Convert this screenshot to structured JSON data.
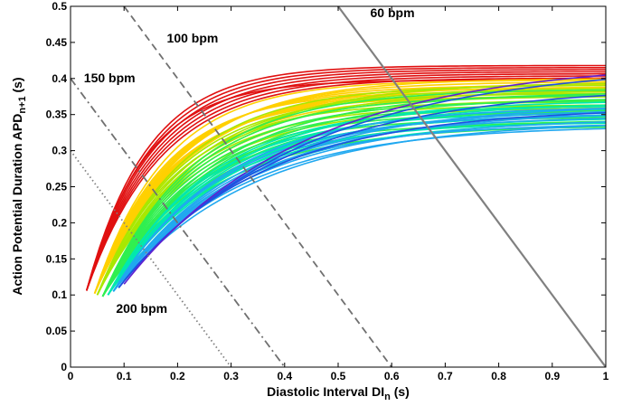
{
  "chart_data": {
    "type": "line",
    "xlabel": {
      "main": "Diastolic Interval DI",
      "sub": "n",
      "unit": " (s)"
    },
    "ylabel": {
      "main": "Action Potential Duration APD",
      "sub": "n+1",
      "unit": " (s)"
    },
    "xlim": [
      0,
      1
    ],
    "ylim": [
      0,
      0.5
    ],
    "xticks": [
      0,
      0.1,
      0.2,
      0.3,
      0.4,
      0.5,
      0.6,
      0.7,
      0.8,
      0.9,
      1
    ],
    "xtick_labels": [
      "0",
      "0.1",
      "0.2",
      "0.3",
      "0.4",
      "0.5",
      "0.6",
      "0.7",
      "0.8",
      "0.9",
      "1"
    ],
    "yticks": [
      0,
      0.05,
      0.1,
      0.15,
      0.2,
      0.25,
      0.3,
      0.35,
      0.4,
      0.45,
      0.5
    ],
    "ytick_labels": [
      "0",
      "0.05",
      "0.1",
      "0.15",
      "0.2",
      "0.25",
      "0.3",
      "0.35",
      "0.4",
      "0.45",
      "0.5"
    ],
    "grid": false,
    "pacing_lines": [
      {
        "label": "60 bpm",
        "cycle_length": 1.0,
        "style": "solid",
        "color": "#808080",
        "label_x": 0.56,
        "label_y": 0.485
      },
      {
        "label": "100 bpm",
        "cycle_length": 0.6,
        "style": "dashed",
        "color": "#707070",
        "label_x": 0.18,
        "label_y": 0.45
      },
      {
        "label": "150 bpm",
        "cycle_length": 0.4,
        "style": "dashdot",
        "color": "#707070",
        "label_x": 0.025,
        "label_y": 0.395
      },
      {
        "label": "200 bpm",
        "cycle_length": 0.3,
        "style": "dotted",
        "color": "#808080",
        "label_x": 0.085,
        "label_y": 0.075
      }
    ],
    "restitution_families": [
      {
        "color": "#e01010",
        "count": 8,
        "x_start": 0.03,
        "y_start": 0.106,
        "y_end_range": [
          0.398,
          0.418
        ],
        "tau_range": [
          0.11,
          0.14
        ]
      },
      {
        "color": "#ffd000",
        "count": 12,
        "x_start": 0.045,
        "y_start": 0.102,
        "y_end_range": [
          0.375,
          0.4
        ],
        "tau_range": [
          0.13,
          0.17
        ]
      },
      {
        "color": "#a8e800",
        "count": 10,
        "x_start": 0.05,
        "y_start": 0.1,
        "y_end_range": [
          0.36,
          0.395
        ],
        "tau_range": [
          0.15,
          0.19
        ]
      },
      {
        "color": "#30ef50",
        "count": 14,
        "x_start": 0.06,
        "y_start": 0.098,
        "y_end_range": [
          0.335,
          0.385
        ],
        "tau_range": [
          0.16,
          0.22
        ]
      },
      {
        "color": "#00e8b0",
        "count": 10,
        "x_start": 0.07,
        "y_start": 0.1,
        "y_end_range": [
          0.34,
          0.37
        ],
        "tau_range": [
          0.18,
          0.23
        ]
      },
      {
        "color": "#20a8f0",
        "count": 10,
        "x_start": 0.08,
        "y_start": 0.105,
        "y_end_range": [
          0.335,
          0.365
        ],
        "tau_range": [
          0.2,
          0.26
        ]
      },
      {
        "color": "#2050e0",
        "count": 3,
        "x_start": 0.09,
        "y_start": 0.11,
        "y_end_range": [
          0.36,
          0.42
        ],
        "tau_range": [
          0.26,
          0.34
        ]
      },
      {
        "color": "#6020d0",
        "count": 1,
        "x_start": 0.1,
        "y_start": 0.115,
        "y_end_range": [
          0.425,
          0.425
        ],
        "tau_range": [
          0.33,
          0.33
        ]
      }
    ]
  }
}
